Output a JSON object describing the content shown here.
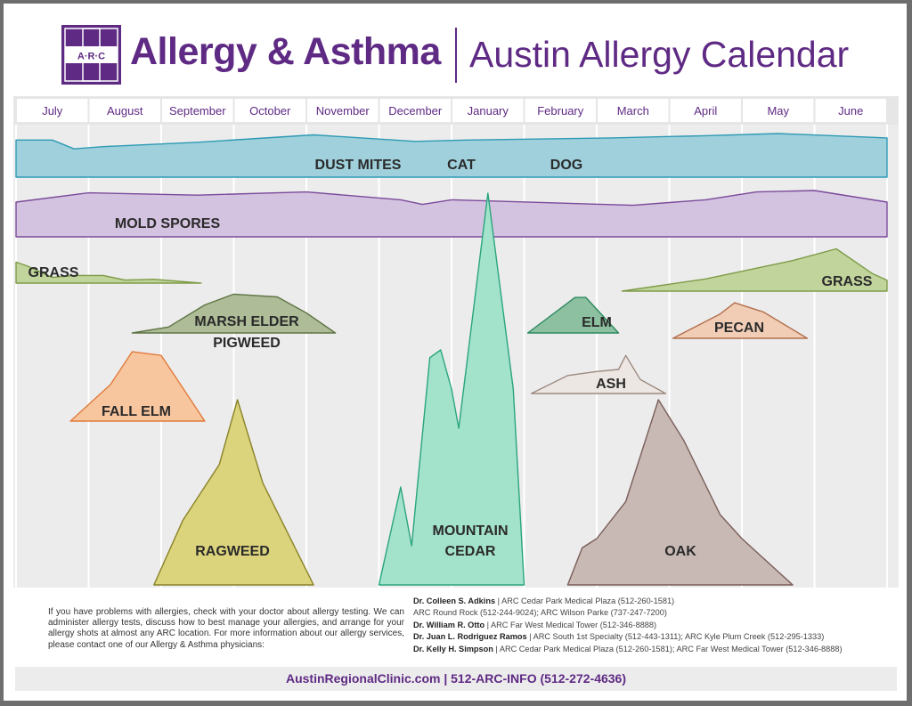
{
  "header": {
    "logo_text": "A·R·C",
    "title": "Allergy & Asthma",
    "subtitle": "Austin Allergy Calendar"
  },
  "chart_data": {
    "type": "area",
    "title": "Austin Allergy Calendar",
    "categories": [
      "July",
      "August",
      "September",
      "October",
      "November",
      "December",
      "January",
      "February",
      "March",
      "April",
      "May",
      "June"
    ],
    "series": [
      {
        "name": "DUST MITES",
        "labels": [
          "DUST MITES",
          "CAT",
          "DOG"
        ],
        "color": "#9fd0dc",
        "stroke": "#2e9ab4",
        "x": [
          0,
          0.5,
          0.8,
          1.2,
          2.5,
          4.1,
          5.5,
          6.2,
          8.2,
          9.5,
          10.5,
          12
        ],
        "y": [
          0.85,
          0.85,
          0.65,
          0.7,
          0.8,
          0.97,
          0.82,
          0.85,
          0.9,
          0.95,
          1.0,
          0.9
        ]
      },
      {
        "name": "MOLD SPORES",
        "labels": [
          "MOLD SPORES"
        ],
        "color": "#d4c3e0",
        "stroke": "#7a4a9a",
        "x": [
          0,
          1,
          2.5,
          4,
          5.3,
          5.6,
          6,
          8.5,
          9.5,
          10.2,
          11,
          12
        ],
        "y": [
          0.75,
          0.95,
          0.9,
          0.97,
          0.8,
          0.7,
          0.8,
          0.68,
          0.8,
          0.97,
          1.0,
          0.75
        ]
      },
      {
        "name": "GRASS",
        "labels": [
          "GRASS"
        ],
        "color": "#c0d49c",
        "stroke": "#7e9b46",
        "x": [
          0,
          0.15,
          0.5,
          0.8,
          1.2,
          1.5,
          1.9,
          2.55
        ],
        "y": [
          0.55,
          0.45,
          0.15,
          0.2,
          0.2,
          0.08,
          0.1,
          0
        ]
      },
      {
        "name": "GRASS",
        "labels": [
          "GRASS"
        ],
        "color": "#c0d49c",
        "stroke": "#7e9b46",
        "x": [
          8.35,
          9.5,
          10.7,
          11.3,
          11.8,
          12
        ],
        "y": [
          0,
          0.28,
          0.7,
          0.97,
          0.4,
          0.25
        ]
      },
      {
        "name": "MARSH ELDER",
        "labels": [
          "MARSH ELDER",
          "PIGWEED"
        ],
        "color": "#aebc98",
        "stroke": "#5f7544",
        "x": [
          1.6,
          2.1,
          2.6,
          3.0,
          3.6,
          4.0,
          4.4
        ],
        "y": [
          0,
          0.15,
          0.7,
          0.97,
          0.9,
          0.5,
          0
        ]
      },
      {
        "name": "FALL ELM",
        "labels": [
          "FALL ELM"
        ],
        "color": "#f8c69e",
        "stroke": "#e07a3b",
        "x": [
          0.75,
          1.3,
          1.6,
          2.0,
          2.2,
          2.6
        ],
        "y": [
          0,
          0.5,
          0.95,
          0.9,
          0.6,
          0
        ]
      },
      {
        "name": "RAGWEED",
        "labels": [
          "RAGWEED"
        ],
        "color": "#dcd47c",
        "stroke": "#8a8228",
        "x": [
          1.9,
          2.3,
          2.8,
          3.05,
          3.4,
          4.1
        ],
        "y": [
          0,
          0.35,
          0.65,
          1.0,
          0.55,
          0
        ]
      },
      {
        "name": "MOUNTAIN CEDAR",
        "labels": [
          "MOUNTAIN",
          "CEDAR"
        ],
        "color": "#a3e2cb",
        "stroke": "#2aa57e",
        "x": [
          5.0,
          5.3,
          5.45,
          5.7,
          5.85,
          6.0,
          6.1,
          6.5,
          6.85,
          7.0
        ],
        "y": [
          0,
          0.25,
          0.1,
          0.58,
          0.6,
          0.5,
          0.4,
          1.0,
          0.5,
          0
        ]
      },
      {
        "name": "ELM",
        "labels": [
          "ELM"
        ],
        "color": "#8cc0a0",
        "stroke": "#2d8a60",
        "x": [
          7.05,
          7.7,
          7.85,
          8.3
        ],
        "y": [
          0,
          0.95,
          0.95,
          0
        ]
      },
      {
        "name": "PECAN",
        "labels": [
          "PECAN"
        ],
        "color": "#f1cdb6",
        "stroke": "#b2704e",
        "x": [
          9.05,
          9.7,
          9.9,
          10.3,
          10.9
        ],
        "y": [
          0,
          0.65,
          0.95,
          0.7,
          0
        ]
      },
      {
        "name": "ASH",
        "labels": [
          "ASH"
        ],
        "color": "#ece7e2",
        "stroke": "#9d8a80",
        "x": [
          7.1,
          7.6,
          8.0,
          8.3,
          8.4,
          8.6,
          8.95
        ],
        "y": [
          0,
          0.45,
          0.55,
          0.6,
          0.95,
          0.35,
          0
        ]
      },
      {
        "name": "OAK",
        "labels": [
          "OAK"
        ],
        "color": "#c8b9b5",
        "stroke": "#7a5d5a",
        "x": [
          7.6,
          7.8,
          8.0,
          8.4,
          8.85,
          9.2,
          9.7,
          10.0,
          10.7
        ],
        "y": [
          0,
          0.2,
          0.25,
          0.45,
          1.0,
          0.78,
          0.38,
          0.25,
          0
        ]
      }
    ]
  },
  "info": {
    "text": "If you have problems with allergies, check with your doctor about allergy testing. We can administer allergy tests, discuss how to best manage your allergies, and arrange for your allergy shots at almost any ARC location. For more information about our allergy services, please contact one of our Allergy & Asthma physicians:"
  },
  "physicians": [
    {
      "name": "Dr. Colleen S. Adkins",
      "sep": " | ",
      "detail": "ARC Cedar Park Medical Plaza (512-260-1581)"
    },
    {
      "name": "",
      "sep": "",
      "detail": "ARC Round Rock (512-244-9024); ARC Wilson Parke (737-247-7200)"
    },
    {
      "name": "Dr. William R. Otto",
      "sep": " | ",
      "detail": "ARC Far West Medical Tower (512-346-8888)"
    },
    {
      "name": "Dr. Juan L. Rodriguez Ramos",
      "sep": " | ",
      "detail": "ARC South 1st Specialty (512-443-1311); ARC Kyle Plum Creek (512-295-1333)"
    },
    {
      "name": "Dr. Kelly H. Simpson",
      "sep": " | ",
      "detail": "ARC Cedar Park Medical Plaza (512-260-1581); ARC Far West Medical Tower (512-346-8888)"
    }
  ],
  "footer": {
    "text": "AustinRegionalClinic.com | 512-ARC-INFO (512-272-4636)"
  }
}
